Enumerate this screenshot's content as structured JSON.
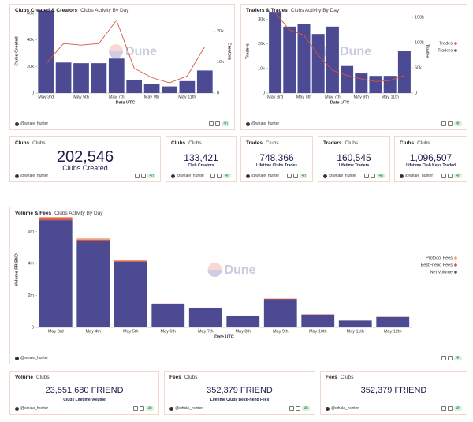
{
  "chart_data": [
    {
      "type": "combo",
      "title": "Clubs Created & Creators",
      "subtitle": "Clubs Activity By Day",
      "xlabel": "Date UTC",
      "ylabel": "Clubs Created",
      "y2label": "Creators",
      "categories": [
        "May 3rd",
        null,
        "May 5th",
        null,
        "May 7th",
        null,
        "May 9th",
        null,
        "May 11th",
        null
      ],
      "series": [
        {
          "name": "Clubs Created",
          "type": "bar",
          "color": "#4b4a93",
          "values": [
            62000,
            23000,
            22500,
            22500,
            26000,
            10000,
            7000,
            5000,
            9000,
            17000
          ]
        },
        {
          "name": "Creators",
          "type": "line",
          "axis": "y2",
          "color": "#d9533f",
          "values": [
            9500,
            16000,
            15500,
            16000,
            23500,
            8000,
            5000,
            3300,
            5500,
            15000
          ]
        }
      ],
      "ylim": [
        0,
        63000
      ],
      "yticks": [
        0,
        {
          "value": 20000,
          "label": "20k"
        },
        {
          "value": 40000,
          "label": "40k"
        },
        {
          "value": 60000,
          "label": "60k"
        }
      ],
      "y2lim": [
        0,
        27000
      ],
      "y2ticks": [
        0,
        {
          "value": 10000,
          "label": "10k"
        },
        {
          "value": 20000,
          "label": "20k"
        }
      ],
      "legend": false,
      "grid": false,
      "watermark": "Dune"
    },
    {
      "type": "combo",
      "title": "Traders & Trades",
      "subtitle": "Clubs Activity By Day",
      "xlabel": "Date UTC",
      "ylabel": "Traders",
      "y2label": "Trades",
      "categories": [
        "May 3rd",
        null,
        "May 5th",
        null,
        "May 7th",
        null,
        "May 9th",
        null,
        "May 11th",
        null
      ],
      "series": [
        {
          "name": "Traders",
          "type": "bar",
          "color": "#4b4a93",
          "values": [
            33000,
            27000,
            28000,
            24000,
            27000,
            11000,
            8000,
            7000,
            7000,
            17000
          ]
        },
        {
          "name": "Trades",
          "type": "line",
          "axis": "y2",
          "color": "#d9533f",
          "values": [
            160000,
            125000,
            115000,
            75000,
            45000,
            35000,
            28000,
            23000,
            25000,
            35000
          ]
        }
      ],
      "ylim": [
        0,
        34000
      ],
      "yticks": [
        0,
        {
          "value": 10000,
          "label": "10k"
        },
        {
          "value": 20000,
          "label": "20k"
        },
        {
          "value": 30000,
          "label": "30k"
        }
      ],
      "y2lim": [
        0,
        166000
      ],
      "y2ticks": [
        0,
        {
          "value": 50000,
          "label": "50k"
        },
        {
          "value": 100000,
          "label": "100k"
        },
        {
          "value": 150000,
          "label": "150k"
        }
      ],
      "legend": "right",
      "grid": false,
      "watermark": "Dune"
    },
    {
      "type": "bar",
      "stacked": true,
      "title": "Volume & Fees",
      "subtitle": "Clubs Activity By Day",
      "xlabel": "Date UTC",
      "ylabel": "Volume FRIEND",
      "categories": [
        "May 3rd",
        "May 4th",
        "May 5th",
        "May 6th",
        "May 7th",
        "May 8th",
        "May 9th",
        "May 10th",
        "May 11th",
        "May 12th"
      ],
      "series": [
        {
          "name": "Net Volume",
          "color": "#4b4a93",
          "values": [
            6700000,
            5400000,
            4100000,
            1450000,
            1200000,
            720000,
            1750000,
            800000,
            420000,
            650000
          ]
        },
        {
          "name": "BestFriend Fees",
          "color": "#d9533f",
          "values": [
            100000,
            80000,
            60000,
            22000,
            18000,
            11000,
            26000,
            12000,
            6000,
            10000
          ]
        },
        {
          "name": "Protocol Fees",
          "color": "#e9a07c",
          "values": [
            100000,
            80000,
            60000,
            22000,
            18000,
            11000,
            26000,
            12000,
            6000,
            10000
          ]
        }
      ],
      "ylim": [
        0,
        7200000
      ],
      "yticks": [
        0,
        {
          "value": 2000000,
          "label": "2m"
        },
        {
          "value": 4000000,
          "label": "4m"
        },
        {
          "value": 6000000,
          "label": "6m"
        }
      ],
      "legend": "right",
      "grid": false,
      "watermark": "Dune"
    }
  ],
  "cards": [
    {
      "title": "Clubs",
      "subtitle": "Clubs",
      "value": "202,546",
      "label": "Clubs Created"
    },
    {
      "title": "Clubs",
      "subtitle": "Clubs",
      "value": "133,421",
      "label": "Club Creators"
    },
    {
      "title": "Trades",
      "subtitle": "Clubs",
      "value": "748,366",
      "label": "Lifetime Clubs Trades"
    },
    {
      "title": "Traders",
      "subtitle": "Clubs",
      "value": "160,545",
      "label": "Lifetime Traders"
    },
    {
      "title": "Clubs",
      "subtitle": "Clubs",
      "value": "1,096,507",
      "label": "Lifetime Club Keys Traded"
    },
    {
      "title": "Volume",
      "subtitle": "Clubs",
      "value": "23,551,680 FRIEND",
      "label": "Clubs Lifetime Volume"
    },
    {
      "title": "Fees",
      "subtitle": "Clubs",
      "value": "352,379 FRIEND",
      "label": "Lifetime Clubs BestFriend Fees"
    },
    {
      "title": "Fees",
      "subtitle": "Clubs",
      "value": "352,379 FRIEND"
    }
  ],
  "footer": {
    "user": "@whale_hunter",
    "age": "4h"
  }
}
